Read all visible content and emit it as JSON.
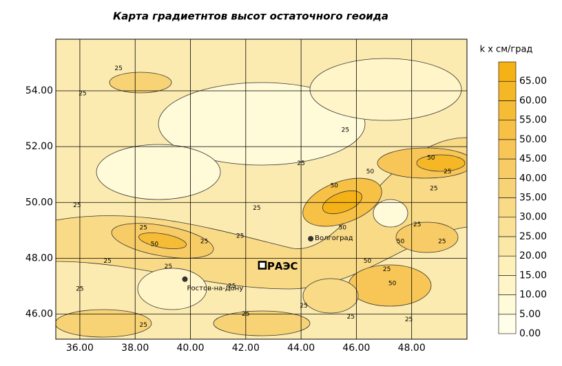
{
  "chart_data": {
    "type": "contour",
    "title": "Карта градиетнтов высот остаточного геоида",
    "colorbar_title": "k x  см/град",
    "xlim": [
      35.13,
      50
    ],
    "ylim": [
      45.1,
      55.85
    ],
    "xticks": [
      {
        "value": 36,
        "label": "36.00"
      },
      {
        "value": 38,
        "label": "38.00"
      },
      {
        "value": 40,
        "label": "40.00"
      },
      {
        "value": 42,
        "label": "42.00"
      },
      {
        "value": 44,
        "label": "44.00"
      },
      {
        "value": 46,
        "label": "46.00"
      },
      {
        "value": 48,
        "label": "48.00"
      }
    ],
    "yticks": [
      {
        "value": 46,
        "label": "46.00"
      },
      {
        "value": 48,
        "label": "48.00"
      },
      {
        "value": 50,
        "label": "50.00"
      },
      {
        "value": 52,
        "label": "52.00"
      },
      {
        "value": 54,
        "label": "54.00"
      }
    ],
    "grid": true,
    "colorbar": {
      "lim": [
        0,
        70
      ],
      "ticks": [
        {
          "value": 0,
          "label": "0.00"
        },
        {
          "value": 5,
          "label": "5.00"
        },
        {
          "value": 10,
          "label": "10.00"
        },
        {
          "value": 15,
          "label": "15.00"
        },
        {
          "value": 20,
          "label": "20.00"
        },
        {
          "value": 25,
          "label": "25.00"
        },
        {
          "value": 30,
          "label": "30.00"
        },
        {
          "value": 35,
          "label": "35.00"
        },
        {
          "value": 40,
          "label": "40.00"
        },
        {
          "value": 45,
          "label": "45.00"
        },
        {
          "value": 50,
          "label": "50.00"
        },
        {
          "value": 55,
          "label": "55.00"
        },
        {
          "value": 60,
          "label": "60.00"
        },
        {
          "value": 65,
          "label": "65.00"
        }
      ],
      "colors": [
        "#fffee8",
        "#fffad8",
        "#fff5c8",
        "#fdf0b8",
        "#fbe8a6",
        "#fae196",
        "#f9da86",
        "#f8d376",
        "#f7cc66",
        "#f7c656",
        "#f7c146",
        "#f6bc36",
        "#f5b726",
        "#f5b216"
      ]
    },
    "contour_labels": [
      {
        "value": 25,
        "lon": 37.4,
        "lat": 54.8
      },
      {
        "value": 25,
        "lon": 36.1,
        "lat": 53.9
      },
      {
        "value": 25,
        "lon": 45.6,
        "lat": 52.6
      },
      {
        "value": 25,
        "lon": 44.0,
        "lat": 51.4
      },
      {
        "value": 25,
        "lon": 35.9,
        "lat": 49.9
      },
      {
        "value": 25,
        "lon": 38.3,
        "lat": 49.1
      },
      {
        "value": 50,
        "lon": 38.7,
        "lat": 48.5
      },
      {
        "value": 25,
        "lon": 40.5,
        "lat": 48.6
      },
      {
        "value": 25,
        "lon": 37.0,
        "lat": 47.9
      },
      {
        "value": 25,
        "lon": 39.2,
        "lat": 47.7
      },
      {
        "value": 25,
        "lon": 41.8,
        "lat": 48.8
      },
      {
        "value": 25,
        "lon": 42.4,
        "lat": 49.8
      },
      {
        "value": 50,
        "lon": 46.5,
        "lat": 51.1
      },
      {
        "value": 50,
        "lon": 45.2,
        "lat": 50.6
      },
      {
        "value": 50,
        "lon": 48.7,
        "lat": 51.6
      },
      {
        "value": 25,
        "lon": 48.8,
        "lat": 50.5
      },
      {
        "value": 50,
        "lon": 45.5,
        "lat": 49.1
      },
      {
        "value": 25,
        "lon": 48.2,
        "lat": 49.2
      },
      {
        "value": 50,
        "lon": 47.6,
        "lat": 48.6
      },
      {
        "value": 25,
        "lon": 49.1,
        "lat": 48.6
      },
      {
        "value": 50,
        "lon": 46.4,
        "lat": 47.9
      },
      {
        "value": 50,
        "lon": 47.3,
        "lat": 47.1
      },
      {
        "value": 25,
        "lon": 47.1,
        "lat": 47.6
      },
      {
        "value": 25,
        "lon": 41.5,
        "lat": 47.0
      },
      {
        "value": 25,
        "lon": 36.0,
        "lat": 46.9
      },
      {
        "value": 25,
        "lon": 42.0,
        "lat": 46.0
      },
      {
        "value": 25,
        "lon": 44.1,
        "lat": 46.3
      },
      {
        "value": 25,
        "lon": 45.8,
        "lat": 45.9
      },
      {
        "value": 25,
        "lon": 38.3,
        "lat": 45.6
      },
      {
        "value": 25,
        "lon": 47.9,
        "lat": 45.8
      },
      {
        "value": 25,
        "lon": 49.3,
        "lat": 51.1
      }
    ],
    "places": [
      {
        "name": "Волгоград",
        "lon": 44.35,
        "lat": 48.7,
        "marker": "dot"
      },
      {
        "name": "Ростов-на-Дону",
        "lon": 39.8,
        "lat": 47.25,
        "marker": "dot"
      },
      {
        "name": "РАЭС",
        "lon": 42.6,
        "lat": 47.75,
        "marker": "square"
      }
    ]
  }
}
